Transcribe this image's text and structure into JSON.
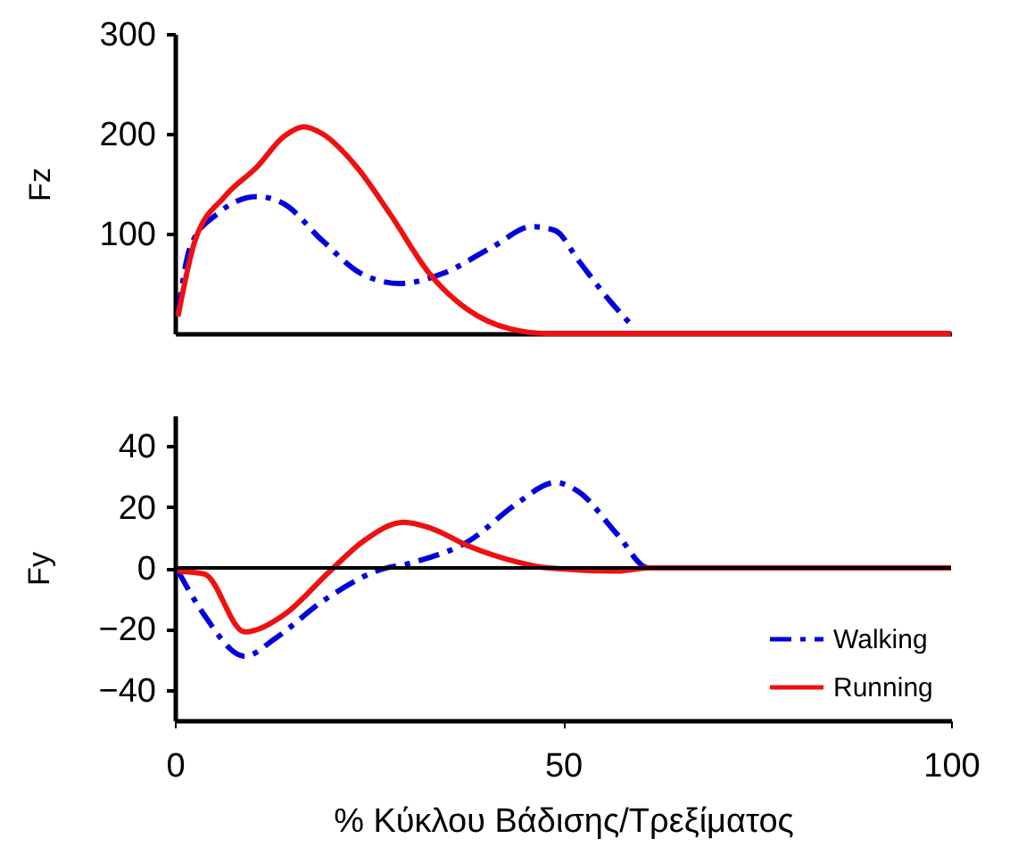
{
  "chart_data": [
    {
      "type": "line",
      "ylabel": "Fz",
      "xlim": [
        0,
        100
      ],
      "ylim": [
        0,
        300
      ],
      "yticks": [
        100,
        200,
        300
      ],
      "tick_labels": "y",
      "grid": false,
      "legend": false,
      "series": [
        {
          "color": "#0000dd",
          "line_style": "dashed",
          "x": [
            0.4,
            2,
            5.5,
            10.6,
            14,
            19,
            24,
            29,
            34.5,
            41,
            46,
            49,
            52,
            56,
            59
          ],
          "values": [
            20,
            87,
            120,
            137,
            130,
            93,
            60,
            50,
            60,
            87,
            107,
            103,
            73,
            33,
            7
          ]
        },
        {
          "color": "#ee1111",
          "line_style": "solid",
          "x": [
            0.4,
            2.6,
            6.4,
            10.6,
            14,
            16.6,
            19,
            23.4,
            27.7,
            32.8,
            37.9,
            43,
            48,
            60,
            100
          ],
          "values": [
            17,
            93,
            137,
            167,
            197,
            207,
            200,
            167,
            120,
            60,
            23,
            5,
            0,
            0,
            0
          ]
        }
      ]
    },
    {
      "type": "line",
      "ylabel": "Fy",
      "xlabel": "% Κύκλου Βάδισης/Τρεξίματος",
      "xlim": [
        0,
        100
      ],
      "ylim": [
        -50,
        50
      ],
      "xticks": [
        0,
        50,
        100
      ],
      "yticks": [
        -40,
        -20,
        0,
        20,
        40
      ],
      "grid": false,
      "legend": "bottom right",
      "ref_lines": [
        {
          "axis": "y",
          "value": 0,
          "color": "#000000"
        }
      ],
      "series": [
        {
          "name": "Walking",
          "color": "#0000dd",
          "line_style": "dashed",
          "x": [
            0.4,
            3.8,
            9,
            13,
            19,
            26,
            31,
            38,
            44,
            49,
            52,
            57,
            61,
            100
          ],
          "values": [
            -1,
            -15.5,
            -29,
            -23,
            -11,
            -1,
            2,
            9,
            21,
            28,
            25,
            11,
            0,
            0
          ]
        },
        {
          "name": "Running",
          "color": "#ee1111",
          "line_style": "solid",
          "x": [
            0.4,
            3.8,
            9,
            14,
            20,
            24.4,
            29.5,
            33,
            38,
            44,
            48,
            57,
            61,
            100
          ],
          "values": [
            -1,
            -2,
            -21,
            -15.5,
            -1,
            9,
            15,
            13,
            7,
            2,
            0,
            -1,
            0,
            0
          ]
        }
      ]
    }
  ]
}
